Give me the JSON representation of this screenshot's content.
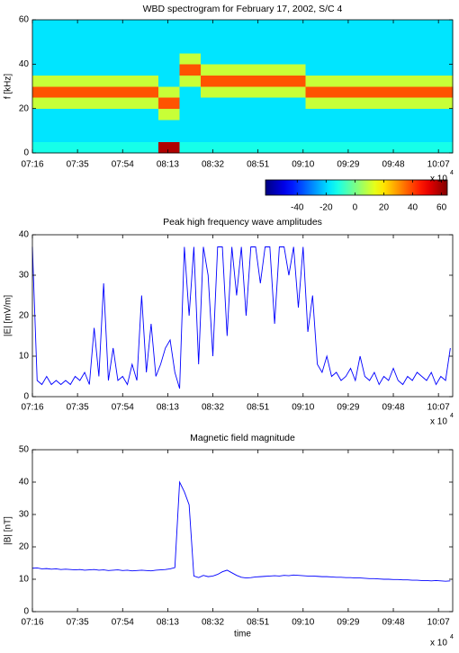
{
  "chart_data": [
    {
      "type": "heatmap",
      "title": "WBD spectrogram for February 17, 2002, S/C 4",
      "y_label": "f [kHz]",
      "x_bins": [
        26160,
        26691,
        27222,
        27753,
        28284,
        28815,
        29346,
        29877,
        30408,
        30939,
        31470,
        32001,
        32532,
        33063,
        33594,
        34125,
        34656,
        35187,
        35718,
        36249,
        36780
      ],
      "y_bins": [
        0,
        5,
        10,
        15,
        20,
        25,
        30,
        35,
        40,
        45,
        50,
        55,
        60
      ],
      "z": [
        [
          -12,
          -12,
          -12,
          -12,
          -12,
          -12,
          58,
          -12,
          -12,
          -12,
          -12,
          -12,
          -12,
          -12,
          -12,
          -12,
          -12,
          -12,
          -12,
          -12
        ],
        [
          -18,
          -18,
          -18,
          -18,
          -18,
          -18,
          -18,
          -18,
          -18,
          -18,
          -18,
          -18,
          -18,
          -18,
          -18,
          -18,
          -18,
          -18,
          -18,
          -18
        ],
        [
          -18,
          -18,
          -18,
          -18,
          -18,
          -18,
          -18,
          -18,
          -18,
          -18,
          -18,
          -18,
          -18,
          -18,
          -18,
          -18,
          -18,
          -18,
          -18,
          -18
        ],
        [
          -18,
          -18,
          -18,
          -18,
          -18,
          -18,
          10,
          -18,
          -18,
          -18,
          -18,
          -18,
          -18,
          -18,
          -18,
          -18,
          -18,
          -18,
          -18,
          -18
        ],
        [
          10,
          10,
          10,
          10,
          10,
          10,
          38,
          -18,
          -18,
          -18,
          -18,
          -18,
          -18,
          10,
          10,
          10,
          10,
          10,
          10,
          10
        ],
        [
          38,
          38,
          38,
          38,
          38,
          38,
          10,
          -18,
          10,
          10,
          10,
          10,
          10,
          38,
          38,
          38,
          38,
          38,
          38,
          38
        ],
        [
          10,
          10,
          10,
          10,
          10,
          10,
          -18,
          10,
          38,
          38,
          38,
          38,
          38,
          10,
          10,
          10,
          10,
          10,
          10,
          10
        ],
        [
          -18,
          -18,
          -18,
          -18,
          -18,
          -18,
          -18,
          38,
          10,
          10,
          10,
          10,
          10,
          -18,
          -18,
          -18,
          -18,
          -18,
          -18,
          -18
        ],
        [
          -18,
          -18,
          -18,
          -18,
          -18,
          -18,
          -18,
          10,
          -18,
          -18,
          -18,
          -18,
          -18,
          -18,
          -18,
          -18,
          -18,
          -18,
          -18,
          -18
        ],
        [
          -18,
          -18,
          -18,
          -18,
          -18,
          -18,
          -18,
          -18,
          -18,
          -18,
          -18,
          -18,
          -18,
          -18,
          -18,
          -18,
          -18,
          -18,
          -18,
          -18
        ],
        [
          -18,
          -18,
          -18,
          -18,
          -18,
          -18,
          -18,
          -18,
          -18,
          -18,
          -18,
          -18,
          -18,
          -18,
          -18,
          -18,
          -18,
          -18,
          -18,
          -18
        ],
        [
          -18,
          -18,
          -18,
          -18,
          -18,
          -18,
          -18,
          -18,
          -18,
          -18,
          -18,
          -18,
          -18,
          -18,
          -18,
          -18,
          -18,
          -18,
          -18,
          -18
        ]
      ],
      "xlim": [
        26160,
        36780
      ],
      "ylim": [
        0,
        60
      ],
      "xticks": [
        {
          "value": 26160,
          "label": "07:16"
        },
        {
          "value": 27300,
          "label": "07:35"
        },
        {
          "value": 28440,
          "label": "07:54"
        },
        {
          "value": 29580,
          "label": "08:13"
        },
        {
          "value": 30720,
          "label": "08:32"
        },
        {
          "value": 31860,
          "label": "08:51"
        },
        {
          "value": 33000,
          "label": "09:10"
        },
        {
          "value": 34140,
          "label": "09:29"
        },
        {
          "value": 35280,
          "label": "09:48"
        },
        {
          "value": 36420,
          "label": "10:07"
        }
      ],
      "yticks": [
        0,
        20,
        40,
        60
      ],
      "x_multiplier": "x 10",
      "x_multiplier_exponent": "4",
      "colorbar": {
        "colormap": "jet",
        "clim": [
          -62,
          64
        ],
        "ticks": [
          -40,
          -20,
          0,
          20,
          40,
          60
        ]
      }
    },
    {
      "type": "line",
      "title": "Peak high frequency wave amplitudes",
      "y_label": "|E| [mV/m]",
      "color": "#0000ff",
      "x": [
        26160,
        26280,
        26400,
        26520,
        26640,
        26760,
        26880,
        27000,
        27120,
        27240,
        27360,
        27480,
        27600,
        27720,
        27840,
        27960,
        28080,
        28200,
        28320,
        28440,
        28560,
        28680,
        28800,
        28920,
        29040,
        29160,
        29280,
        29400,
        29520,
        29640,
        29760,
        29880,
        30000,
        30120,
        30240,
        30360,
        30480,
        30600,
        30720,
        30840,
        30960,
        31080,
        31200,
        31320,
        31440,
        31560,
        31680,
        31800,
        31920,
        32040,
        32160,
        32280,
        32400,
        32520,
        32640,
        32760,
        32880,
        33000,
        33120,
        33240,
        33360,
        33480,
        33600,
        33720,
        33840,
        33960,
        34080,
        34200,
        34320,
        34440,
        34560,
        34680,
        34800,
        34920,
        35040,
        35160,
        35280,
        35400,
        35520,
        35640,
        35760,
        35880,
        36000,
        36120,
        36240,
        36360,
        36480,
        36600,
        36720
      ],
      "values": [
        37,
        4,
        3,
        5,
        3,
        4,
        3,
        4,
        3,
        5,
        4,
        6,
        3,
        17,
        5,
        28,
        4,
        12,
        4,
        5,
        3,
        8,
        4,
        25,
        6,
        18,
        5,
        8,
        12,
        14,
        6,
        2,
        37,
        20,
        37,
        8,
        37,
        30,
        10,
        37,
        37,
        15,
        37,
        25,
        37,
        20,
        37,
        37,
        28,
        37,
        37,
        18,
        37,
        37,
        30,
        37,
        22,
        37,
        16,
        25,
        8,
        6,
        10,
        5,
        6,
        4,
        5,
        7,
        4,
        10,
        5,
        4,
        6,
        3,
        5,
        4,
        7,
        4,
        3,
        5,
        4,
        6,
        5,
        4,
        6,
        3,
        5,
        4,
        12
      ],
      "xlim": [
        26160,
        36780
      ],
      "ylim": [
        0,
        40
      ],
      "xticks": [
        {
          "value": 26160,
          "label": "07:16"
        },
        {
          "value": 27300,
          "label": "07:35"
        },
        {
          "value": 28440,
          "label": "07:54"
        },
        {
          "value": 29580,
          "label": "08:13"
        },
        {
          "value": 30720,
          "label": "08:32"
        },
        {
          "value": 31860,
          "label": "08:51"
        },
        {
          "value": 33000,
          "label": "09:10"
        },
        {
          "value": 34140,
          "label": "09:29"
        },
        {
          "value": 35280,
          "label": "09:48"
        },
        {
          "value": 36420,
          "label": "10:07"
        }
      ],
      "yticks": [
        0,
        10,
        20,
        30,
        40
      ],
      "x_multiplier": "x 10",
      "x_multiplier_exponent": "4"
    },
    {
      "type": "line",
      "title": "Magnetic field magnitude",
      "y_label": "|B| [nT]",
      "x_label": "time",
      "color": "#0000ff",
      "x": [
        26160,
        26280,
        26400,
        26520,
        26640,
        26760,
        26880,
        27000,
        27120,
        27240,
        27360,
        27480,
        27600,
        27720,
        27840,
        27960,
        28080,
        28200,
        28320,
        28440,
        28560,
        28680,
        28800,
        28920,
        29040,
        29160,
        29280,
        29400,
        29520,
        29640,
        29760,
        29880,
        30000,
        30120,
        30240,
        30360,
        30480,
        30600,
        30720,
        30840,
        30960,
        31080,
        31200,
        31320,
        31440,
        31560,
        31680,
        31800,
        31920,
        32040,
        32160,
        32280,
        32400,
        32520,
        32640,
        32760,
        32880,
        33000,
        33120,
        33240,
        33360,
        33480,
        33600,
        33720,
        33840,
        33960,
        34080,
        34200,
        34320,
        34440,
        34560,
        34680,
        34800,
        34920,
        35040,
        35160,
        35280,
        35400,
        35520,
        35640,
        35760,
        35880,
        36000,
        36120,
        36240,
        36360,
        36480,
        36600,
        36720
      ],
      "values": [
        13.4,
        13.5,
        13.2,
        13.3,
        13.1,
        13.2,
        13.0,
        13.1,
        13.0,
        12.9,
        13.0,
        12.8,
        12.9,
        13.0,
        12.8,
        12.9,
        12.7,
        12.8,
        12.9,
        12.7,
        12.8,
        12.6,
        12.7,
        12.8,
        12.7,
        12.6,
        12.8,
        12.9,
        13.0,
        13.2,
        13.6,
        40,
        37,
        33,
        11,
        10.5,
        11.2,
        10.8,
        11.0,
        11.5,
        12.3,
        12.8,
        12.0,
        11.2,
        10.6,
        10.4,
        10.5,
        10.7,
        10.8,
        10.9,
        11.0,
        11.1,
        11.0,
        11.2,
        11.1,
        11.3,
        11.2,
        11.1,
        11.0,
        11.0,
        10.9,
        10.8,
        10.8,
        10.7,
        10.6,
        10.6,
        10.5,
        10.5,
        10.4,
        10.4,
        10.3,
        10.2,
        10.2,
        10.1,
        10.0,
        10.0,
        9.9,
        9.9,
        9.8,
        9.8,
        9.7,
        9.7,
        9.6,
        9.6,
        9.5,
        9.6,
        9.5,
        9.4,
        9.5
      ],
      "xlim": [
        26160,
        36780
      ],
      "ylim": [
        0,
        50
      ],
      "xticks": [
        {
          "value": 26160,
          "label": "07:16"
        },
        {
          "value": 27300,
          "label": "07:35"
        },
        {
          "value": 28440,
          "label": "07:54"
        },
        {
          "value": 29580,
          "label": "08:13"
        },
        {
          "value": 30720,
          "label": "08:32"
        },
        {
          "value": 31860,
          "label": "08:51"
        },
        {
          "value": 33000,
          "label": "09:10"
        },
        {
          "value": 34140,
          "label": "09:29"
        },
        {
          "value": 35280,
          "label": "09:48"
        },
        {
          "value": 36420,
          "label": "10:07"
        }
      ],
      "yticks": [
        0,
        10,
        20,
        30,
        40,
        50
      ],
      "x_multiplier": "x 10",
      "x_multiplier_exponent": "4"
    }
  ]
}
